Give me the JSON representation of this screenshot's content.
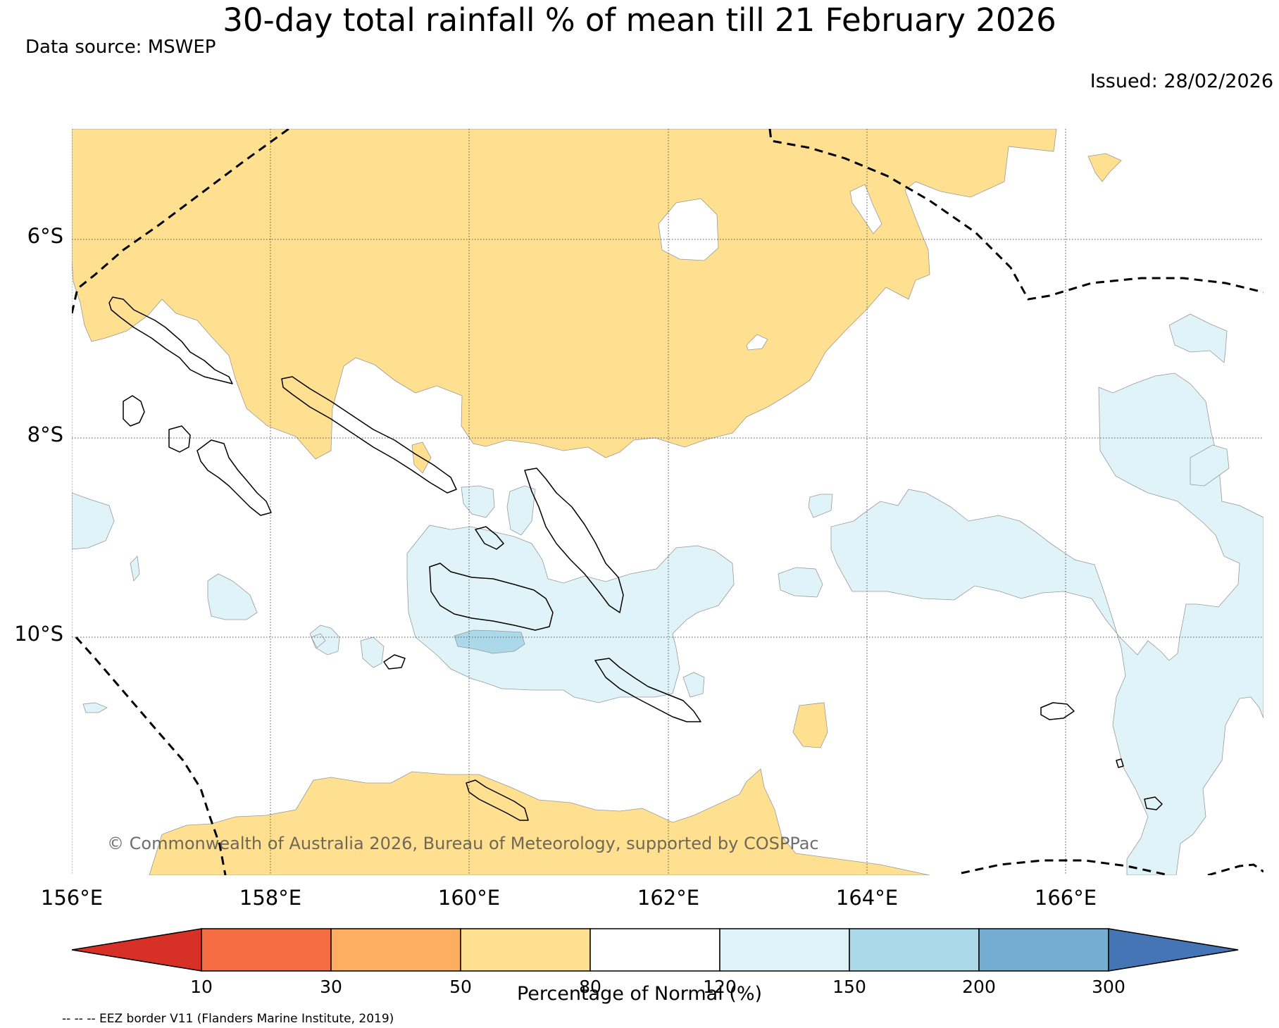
{
  "title": "30-day total rainfall % of mean till 21 February 2026",
  "data_source": "Data source: MSWEP",
  "issued": "Issued: 28/02/2026",
  "credit": "© Commonwealth of Australia 2026, Bureau of Meteorology, supported by COSPPac",
  "map": {
    "lat_labels": [
      "6°S",
      "8°S",
      "10°S"
    ],
    "lon_labels": [
      "156°E",
      "158°E",
      "160°E",
      "162°E",
      "164°E",
      "166°E"
    ]
  },
  "colorbar": {
    "label": "Percentage of Normal (%)",
    "ticks": [
      "10",
      "30",
      "50",
      "80",
      "120",
      "150",
      "200",
      "300"
    ],
    "colors": {
      "under": "#d73027",
      "c10_30": "#f46d43",
      "c30_50": "#fdae61",
      "c50_80": "#fee090",
      "c80_120": "#ffffff",
      "c120_150": "#e0f3f8",
      "c150_200": "#abd9e9",
      "c200_300": "#74add1",
      "over": "#4575b4"
    }
  },
  "legend_note": "-- -- -- EEZ border V11 (Flanders Marine Institute, 2019)"
}
